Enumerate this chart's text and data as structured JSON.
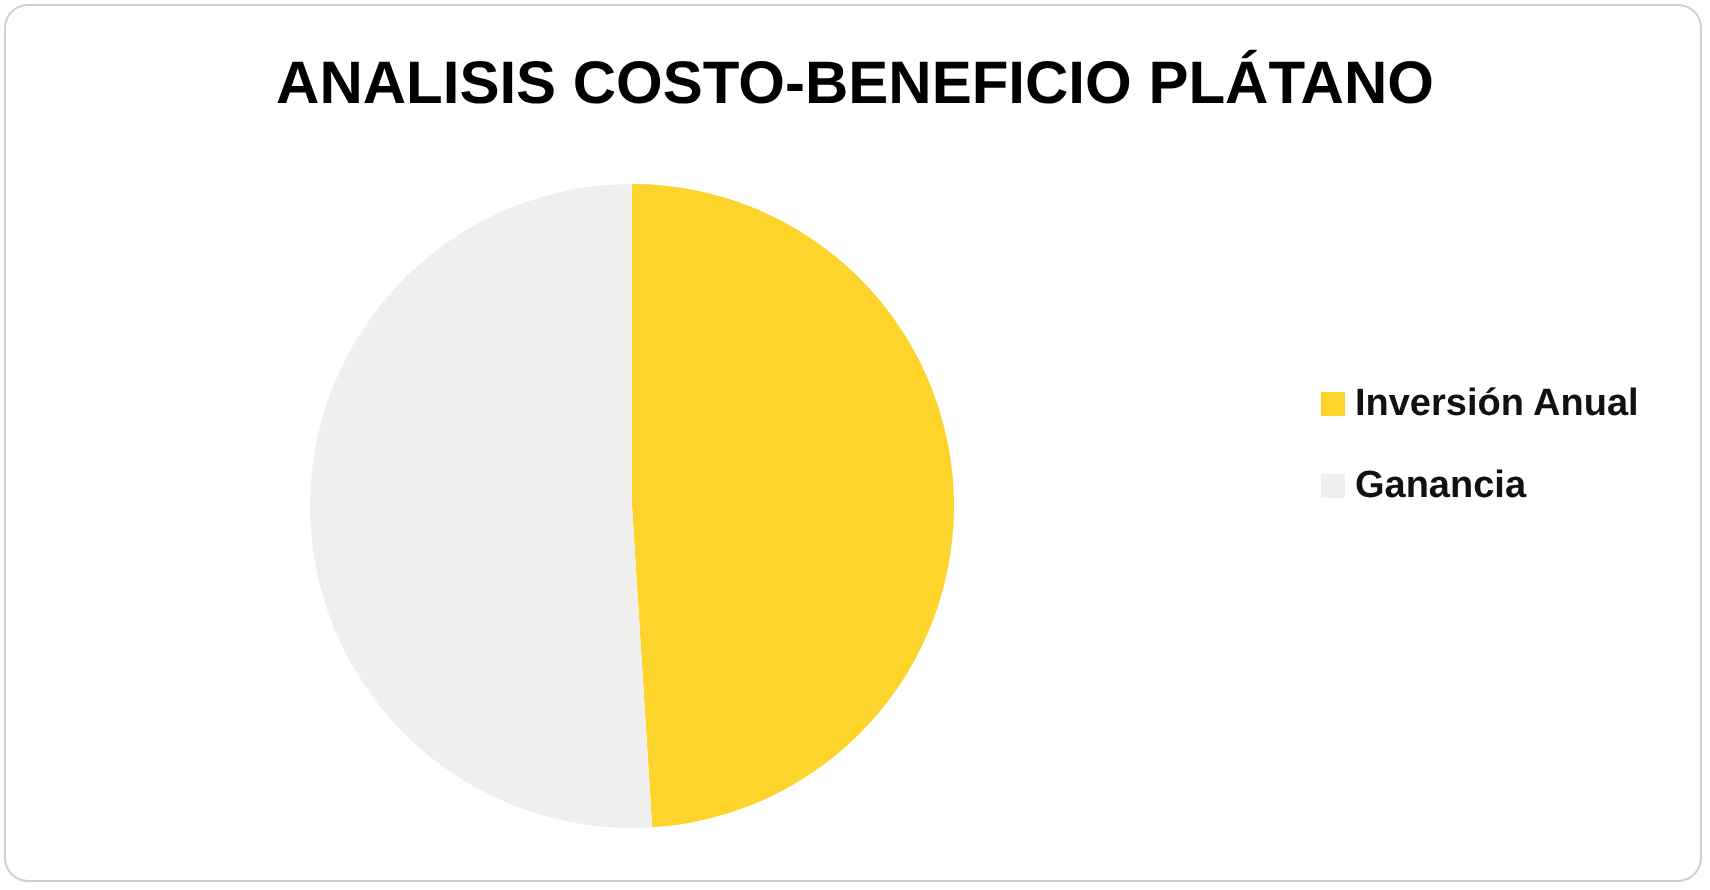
{
  "chart_data": {
    "type": "pie",
    "title": "ANALISIS COSTO-BENEFICIO PLÁTANO",
    "categories": [
      "Inversión Anual",
      "Ganancia"
    ],
    "values": [
      49,
      51
    ],
    "colors": [
      "#fdd42b",
      "#f0efed"
    ],
    "legend": "right"
  }
}
